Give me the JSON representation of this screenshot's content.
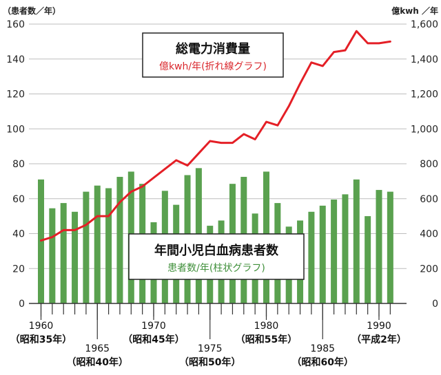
{
  "chart_data": {
    "type": "bar+line",
    "left_axis": {
      "unit_label": "（患者数／年）",
      "ylim": [
        0,
        160
      ],
      "ticks": [
        "0",
        "20",
        "40",
        "60",
        "80",
        "100",
        "120",
        "140",
        "160"
      ]
    },
    "right_axis": {
      "unit_label": "億kwh ／年",
      "ylim": [
        0,
        1600
      ],
      "ticks": [
        "0",
        "200",
        "400",
        "600",
        "800",
        "1,000",
        "1,200",
        "1,400",
        "1,600"
      ]
    },
    "years": [
      1960,
      1961,
      1962,
      1963,
      1964,
      1965,
      1966,
      1967,
      1968,
      1969,
      1970,
      1971,
      1972,
      1973,
      1974,
      1975,
      1976,
      1977,
      1978,
      1979,
      1980,
      1981,
      1982,
      1983,
      1984,
      1985,
      1986,
      1987,
      1988,
      1989,
      1990,
      1991
    ],
    "series": [
      {
        "name": "年間小児白血病患者数",
        "legend_sub": "患者数/年(柱状グラフ)",
        "type": "bar",
        "axis": "left",
        "color": "#5aa14f",
        "values": [
          71,
          54.5,
          57.5,
          52.5,
          64,
          67.5,
          66,
          72.5,
          75.5,
          68.5,
          46.5,
          64.5,
          56.5,
          73.5,
          77.5,
          44.5,
          47.5,
          68.5,
          72.5,
          51.5,
          75.5,
          57.5,
          44,
          47.5,
          52.5,
          56,
          59.5,
          62.5,
          71,
          50,
          65,
          64
        ]
      },
      {
        "name": "総電力消費量",
        "legend_sub": "億kwh/年(折れ線グラフ)",
        "type": "line",
        "axis": "right",
        "color": "#e41f26",
        "values": [
          360,
          380,
          420,
          420,
          450,
          500,
          500,
          580,
          640,
          670,
          720,
          770,
          820,
          790,
          860,
          930,
          920,
          920,
          970,
          940,
          1040,
          1020,
          1130,
          1260,
          1380,
          1360,
          1440,
          1450,
          1560,
          1490,
          1490,
          1500
        ]
      }
    ],
    "x_labels": [
      {
        "year": 1960,
        "label": "1960",
        "era": "（昭和35年）",
        "row": 1
      },
      {
        "year": 1965,
        "label": "1965",
        "era": "（昭和40年）",
        "row": 2
      },
      {
        "year": 1970,
        "label": "1970",
        "era": "（昭和45年）",
        "row": 1
      },
      {
        "year": 1975,
        "label": "1975",
        "era": "（昭和50年）",
        "row": 2
      },
      {
        "year": 1980,
        "label": "1980",
        "era": "（昭和55年）",
        "row": 1
      },
      {
        "year": 1985,
        "label": "1985",
        "era": "（昭和60年）",
        "row": 2
      },
      {
        "year": 1990,
        "label": "1990",
        "era": "（平成2年）",
        "row": 1
      }
    ],
    "grid": true
  }
}
